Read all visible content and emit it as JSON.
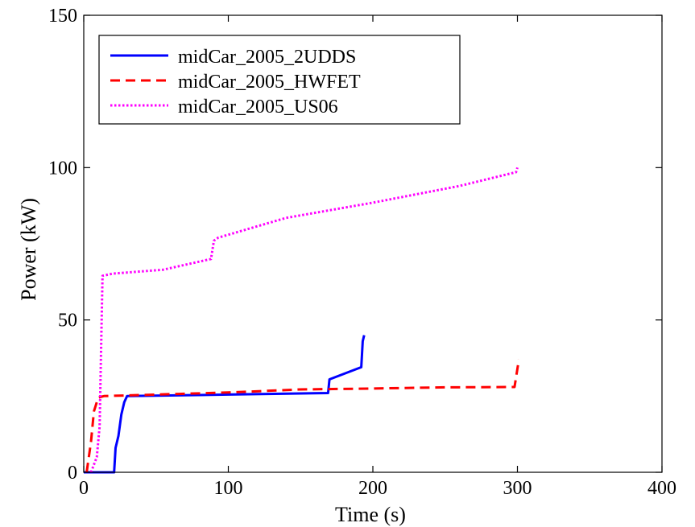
{
  "chart_data": {
    "type": "line",
    "xlabel": "Time (s)",
    "ylabel": "Power (kW)",
    "xlim": [
      0,
      400
    ],
    "ylim": [
      0,
      150
    ],
    "xticks": [
      "0",
      "100",
      "200",
      "300",
      "400"
    ],
    "yticks": [
      "0",
      "50",
      "100",
      "150"
    ],
    "grid": false,
    "legend_position": "top-left",
    "series": [
      {
        "name": "midCar_2005_2UDDS",
        "color": "#0000ff",
        "style": "solid",
        "points": [
          [
            0,
            0
          ],
          [
            21,
            0
          ],
          [
            22,
            8
          ],
          [
            24,
            12
          ],
          [
            26,
            19
          ],
          [
            28,
            23
          ],
          [
            30,
            25
          ],
          [
            100,
            25.5
          ],
          [
            169,
            26
          ],
          [
            170,
            30.5
          ],
          [
            192,
            34.5
          ],
          [
            193,
            43
          ],
          [
            194,
            45
          ]
        ]
      },
      {
        "name": "midCar_2005_HWFET",
        "color": "#ff0000",
        "style": "dashed",
        "points": [
          [
            2,
            0
          ],
          [
            5,
            10
          ],
          [
            7,
            20
          ],
          [
            10,
            24.5
          ],
          [
            14,
            25
          ],
          [
            50,
            25.5
          ],
          [
            100,
            26.2
          ],
          [
            150,
            27.2
          ],
          [
            200,
            27.5
          ],
          [
            250,
            27.9
          ],
          [
            298,
            28
          ],
          [
            301,
            37
          ]
        ]
      },
      {
        "name": "midCar_2005_US06",
        "color": "#ff00ff",
        "style": "dotted",
        "points": [
          [
            5,
            0
          ],
          [
            9,
            5
          ],
          [
            11,
            15
          ],
          [
            12,
            40
          ],
          [
            13,
            64.5
          ],
          [
            20,
            65.2
          ],
          [
            55,
            66.5
          ],
          [
            88,
            70
          ],
          [
            90,
            76
          ],
          [
            93,
            77
          ],
          [
            140,
            83.5
          ],
          [
            200,
            88.5
          ],
          [
            260,
            94
          ],
          [
            299,
            98.5
          ],
          [
            300,
            100
          ]
        ]
      }
    ]
  }
}
